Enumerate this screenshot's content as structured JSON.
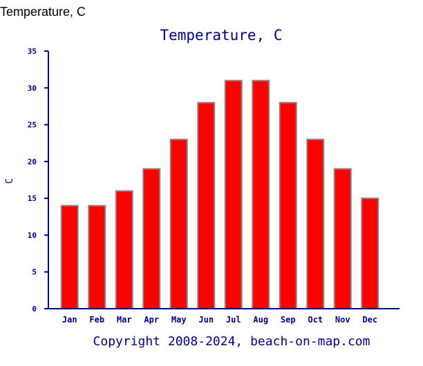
{
  "page": {
    "heading": "Temperature, C"
  },
  "chart_data": {
    "type": "bar",
    "title": "Temperature, C",
    "xlabel": "",
    "ylabel": "C",
    "categories": [
      "Jan",
      "Feb",
      "Mar",
      "Apr",
      "May",
      "Jun",
      "Jul",
      "Aug",
      "Sep",
      "Oct",
      "Nov",
      "Dec"
    ],
    "values": [
      14,
      14,
      16,
      19,
      23,
      28,
      31,
      31,
      28,
      23,
      19,
      15
    ],
    "ylim": [
      0,
      35
    ],
    "yticks": [
      0,
      5,
      10,
      15,
      20,
      25,
      30,
      35
    ],
    "grid": false,
    "legend": "none",
    "copyright": "Copyright 2008-2024, beach-on-map.com",
    "colors": {
      "bar_fill": "#ff0000",
      "bar_stroke": "#888888",
      "axis": "#000080",
      "text": "#000080"
    }
  }
}
